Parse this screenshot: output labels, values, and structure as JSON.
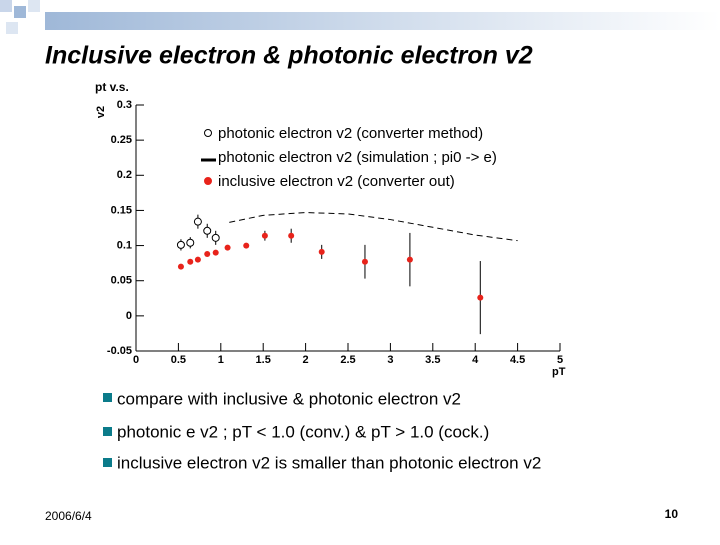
{
  "slide": {
    "title": "Inclusive electron & photonic electron v2",
    "bullets": [
      "compare with inclusive & photonic electron v2",
      "photonic e v2 ; pT < 1.0 (conv.) & pT > 1.0 (cock.)",
      "inclusive electron v2 is smaller than photonic electron v2"
    ],
    "date": "2006/6/4",
    "page": "10"
  },
  "chart_data": {
    "type": "scatter",
    "title": "pt v.s.",
    "x_label": "pT",
    "y_label": "v2",
    "xlim": [
      0,
      5
    ],
    "xticks": [
      0,
      0.5,
      1,
      1.5,
      2,
      2.5,
      3,
      3.5,
      4,
      4.5,
      5
    ],
    "ylim": [
      -0.05,
      0.3
    ],
    "yticks": [
      -0.05,
      0,
      0.05,
      0.1,
      0.15,
      0.2,
      0.25,
      0.3
    ],
    "series": [
      {
        "name": "photonic electron v2 (converter method)",
        "color": "#000000",
        "marker": "open-circle",
        "x": [
          0.53,
          0.64,
          0.73,
          0.84,
          0.94
        ],
        "values": [
          0.101,
          0.104,
          0.134,
          0.121,
          0.111
        ],
        "errors": [
          0.008,
          0.008,
          0.01,
          0.01,
          0.01
        ]
      },
      {
        "name": "photonic electron v2 (simulation ; pi0 -> e)",
        "color": "#000000",
        "marker": "dashed-line",
        "x": [
          1.1,
          1.5,
          2.0,
          2.5,
          3.0,
          3.5,
          4.0,
          4.5
        ],
        "values": [
          0.133,
          0.143,
          0.147,
          0.145,
          0.137,
          0.126,
          0.115,
          0.107
        ]
      },
      {
        "name": "inclusive electron v2 (converter out)",
        "color": "#e8231b",
        "marker": "filled-circle",
        "x": [
          0.53,
          0.64,
          0.73,
          0.84,
          0.94,
          1.08,
          1.3,
          1.52,
          1.83,
          2.19,
          2.7,
          3.23,
          4.06
        ],
        "values": [
          0.07,
          0.077,
          0.08,
          0.088,
          0.09,
          0.097,
          0.1,
          0.114,
          0.114,
          0.091,
          0.077,
          0.08,
          0.026
        ],
        "errors": [
          0.003,
          0.003,
          0.003,
          0.003,
          0.003,
          0.003,
          0.003,
          0.007,
          0.01,
          0.01,
          0.024,
          0.038,
          0.052
        ]
      }
    ]
  }
}
